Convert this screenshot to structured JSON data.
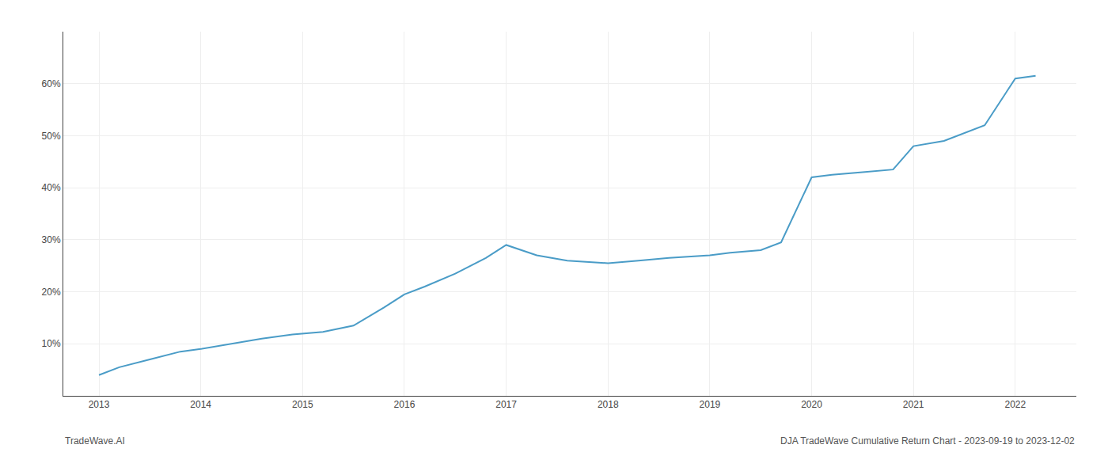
{
  "chart_data": {
    "type": "line",
    "x": [
      2013.0,
      2013.2,
      2013.5,
      2013.8,
      2014.0,
      2014.3,
      2014.6,
      2014.9,
      2015.0,
      2015.2,
      2015.5,
      2015.8,
      2016.0,
      2016.2,
      2016.5,
      2016.8,
      2017.0,
      2017.15,
      2017.3,
      2017.6,
      2018.0,
      2018.3,
      2018.6,
      2019.0,
      2019.2,
      2019.5,
      2019.7,
      2020.0,
      2020.2,
      2020.5,
      2020.8,
      2021.0,
      2021.3,
      2021.7,
      2022.0,
      2022.2
    ],
    "values": [
      4.0,
      5.5,
      7.0,
      8.5,
      9.0,
      10.0,
      11.0,
      11.8,
      12.0,
      12.3,
      13.5,
      17.0,
      19.5,
      21.0,
      23.5,
      26.5,
      29.0,
      28.0,
      27.0,
      26.0,
      25.5,
      26.0,
      26.5,
      27.0,
      27.5,
      28.0,
      29.5,
      42.0,
      42.5,
      43.0,
      43.5,
      48.0,
      49.0,
      52.0,
      61.0,
      61.5
    ],
    "color": "#4a9cc7",
    "xlim": [
      2012.65,
      2022.6
    ],
    "ylim": [
      0,
      70
    ],
    "xticks": [
      2013,
      2014,
      2015,
      2016,
      2017,
      2018,
      2019,
      2020,
      2021,
      2022
    ],
    "yticks": [
      {
        "value": 10,
        "label": "10%"
      },
      {
        "value": 20,
        "label": "20%"
      },
      {
        "value": 30,
        "label": "30%"
      },
      {
        "value": 40,
        "label": "40%"
      },
      {
        "value": 50,
        "label": "50%"
      },
      {
        "value": 60,
        "label": "60%"
      }
    ],
    "grid": true,
    "annotations": [
      "TradeWave.AI",
      "DJA TradeWave Cumulative Return Chart - 2023-09-19 to 2023-12-02"
    ]
  }
}
